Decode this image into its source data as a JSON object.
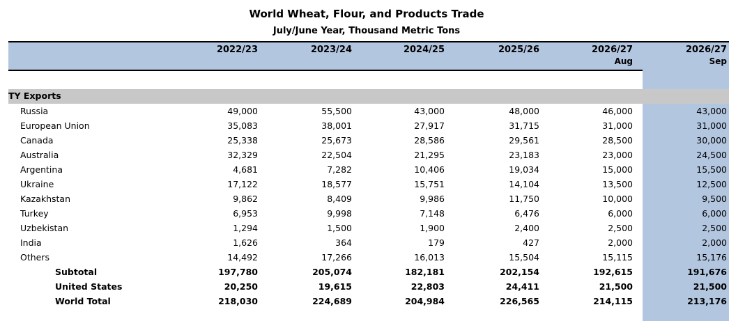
{
  "title": "World Wheat, Flour, and Products Trade",
  "subtitle": "July/June Year, Thousand Metric Tons",
  "columns": [
    {
      "line1": "2022/23",
      "line2": ""
    },
    {
      "line1": "2023/24",
      "line2": ""
    },
    {
      "line1": "2024/25",
      "line2": ""
    },
    {
      "line1": "2025/26",
      "line2": ""
    },
    {
      "line1": "2026/27",
      "line2": "Aug"
    },
    {
      "line1": "2026/27",
      "line2": "Sep"
    }
  ],
  "section_label": "TY Exports",
  "rows": [
    {
      "name": "Russia",
      "style": "normal",
      "values": [
        "49,000",
        "55,500",
        "43,000",
        "48,000",
        "46,000",
        "43,000"
      ]
    },
    {
      "name": "European Union",
      "style": "normal",
      "values": [
        "35,083",
        "38,001",
        "27,917",
        "31,715",
        "31,000",
        "31,000"
      ]
    },
    {
      "name": "Canada",
      "style": "normal",
      "values": [
        "25,338",
        "25,673",
        "28,586",
        "29,561",
        "28,500",
        "30,000"
      ]
    },
    {
      "name": "Australia",
      "style": "normal",
      "values": [
        "32,329",
        "22,504",
        "21,295",
        "23,183",
        "23,000",
        "24,500"
      ]
    },
    {
      "name": "Argentina",
      "style": "normal",
      "values": [
        "4,681",
        "7,282",
        "10,406",
        "19,034",
        "15,000",
        "15,500"
      ]
    },
    {
      "name": "Ukraine",
      "style": "normal",
      "values": [
        "17,122",
        "18,577",
        "15,751",
        "14,104",
        "13,500",
        "12,500"
      ]
    },
    {
      "name": "Kazakhstan",
      "style": "normal",
      "values": [
        "9,862",
        "8,409",
        "9,986",
        "11,750",
        "10,000",
        "9,500"
      ]
    },
    {
      "name": "Turkey",
      "style": "normal",
      "values": [
        "6,953",
        "9,998",
        "7,148",
        "6,476",
        "6,000",
        "6,000"
      ]
    },
    {
      "name": "Uzbekistan",
      "style": "normal",
      "values": [
        "1,294",
        "1,500",
        "1,900",
        "2,400",
        "2,500",
        "2,500"
      ]
    },
    {
      "name": "India",
      "style": "normal",
      "values": [
        "1,626",
        "364",
        "179",
        "427",
        "2,000",
        "2,000"
      ]
    },
    {
      "name": "Others",
      "style": "normal",
      "values": [
        "14,492",
        "17,266",
        "16,013",
        "15,504",
        "15,115",
        "15,176"
      ]
    },
    {
      "name": "Subtotal",
      "style": "bold",
      "values": [
        "197,780",
        "205,074",
        "182,181",
        "202,154",
        "192,615",
        "191,676"
      ]
    },
    {
      "name": "United States",
      "style": "bold",
      "values": [
        "20,250",
        "19,615",
        "22,803",
        "24,411",
        "21,500",
        "21,500"
      ]
    },
    {
      "name": "World Total",
      "style": "bold",
      "values": [
        "218,030",
        "224,689",
        "204,984",
        "226,565",
        "214,115",
        "213,176"
      ]
    }
  ]
}
